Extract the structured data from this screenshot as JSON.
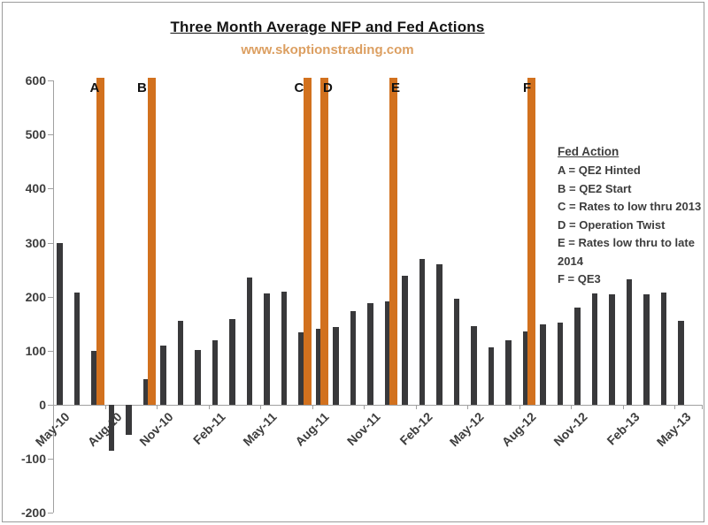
{
  "header": {
    "title": "Three Month Average NFP and Fed Actions",
    "subtitle": "www.skoptionstrading.com"
  },
  "colors": {
    "bar": "#39393b",
    "fed_action_line": "#d2711e",
    "subtitle_text": "#dc9f61",
    "axis": "#a0a0a0",
    "axis_text": "#3d3d3d",
    "frame": "#9b9b9b"
  },
  "legend": {
    "title": "Fed Action"
  },
  "chart_data": {
    "type": "bar",
    "title": "Three Month Average NFP and Fed Actions",
    "subtitle": "www.skoptionstrading.com",
    "xlabel": "",
    "ylabel": "",
    "ylim": [
      -200,
      600
    ],
    "y_ticks": [
      600,
      500,
      400,
      300,
      200,
      100,
      0,
      -100,
      -200
    ],
    "grid": false,
    "legend_position": "right",
    "categories": [
      "May-10",
      "Jun-10",
      "Jul-10",
      "Aug-10",
      "Sep-10",
      "Oct-10",
      "Nov-10",
      "Dec-10",
      "Jan-11",
      "Feb-11",
      "Mar-11",
      "Apr-11",
      "May-11",
      "Jun-11",
      "Jul-11",
      "Aug-11",
      "Sep-11",
      "Oct-11",
      "Nov-11",
      "Dec-11",
      "Jan-12",
      "Feb-12",
      "Mar-12",
      "Apr-12",
      "May-12",
      "Jun-12",
      "Jul-12",
      "Aug-12",
      "Sep-12",
      "Oct-12",
      "Nov-12",
      "Dec-12",
      "Jan-13",
      "Feb-13",
      "Mar-13",
      "Apr-13",
      "May-13"
    ],
    "values": [
      300,
      207,
      100,
      -85,
      -55,
      48,
      110,
      155,
      102,
      120,
      158,
      235,
      206,
      210,
      134,
      140,
      144,
      174,
      188,
      191,
      238,
      270,
      260,
      196,
      146,
      107,
      119,
      136,
      149,
      152,
      180,
      206,
      204,
      232,
      205,
      207,
      155
    ],
    "x_tick_labels": [
      "May-10",
      "Aug-10",
      "Nov-10",
      "Feb-11",
      "May-11",
      "Aug-11",
      "Nov-11",
      "Feb-12",
      "May-12",
      "Aug-12",
      "Nov-12",
      "Feb-13",
      "May-13"
    ],
    "fed_actions": [
      {
        "key": "A",
        "month_index": 2,
        "desc": "QE2 Hinted"
      },
      {
        "key": "B",
        "month_index": 5,
        "desc": "QE2 Start"
      },
      {
        "key": "C",
        "month_index": 14,
        "desc": "Rates to low thru 2013"
      },
      {
        "key": "D",
        "month_index": 15,
        "desc": "Operation Twist"
      },
      {
        "key": "E",
        "month_index": 19,
        "desc": "Rates low thru to late 2014"
      },
      {
        "key": "F",
        "month_index": 27,
        "desc": "QE3"
      }
    ]
  }
}
